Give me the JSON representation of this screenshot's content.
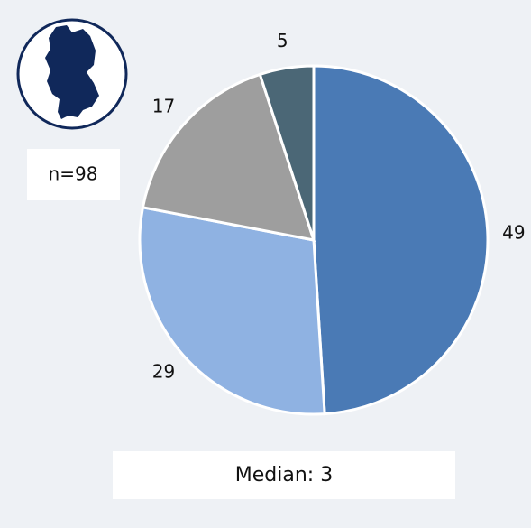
{
  "chart_data": {
    "type": "pie",
    "values": [
      49,
      29,
      17,
      5
    ],
    "colors": [
      "#4a7ab5",
      "#8fb2e2",
      "#9e9e9e",
      "#4b6776"
    ],
    "annotations": [
      "n=98",
      "Median: 3"
    ]
  }
}
